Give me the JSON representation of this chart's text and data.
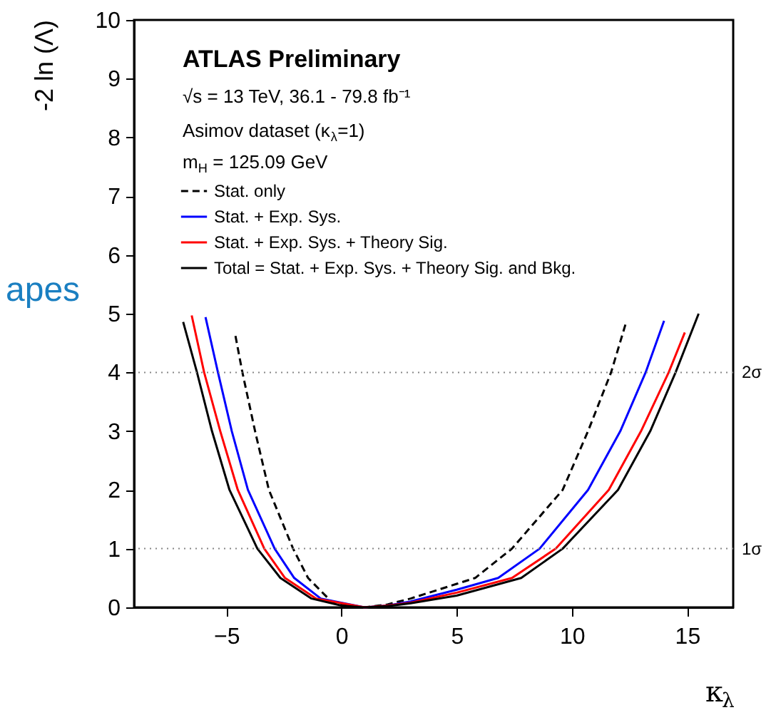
{
  "chart_data": {
    "type": "line",
    "xlabel": "κ$_{λ}$",
    "ylabel": "-2 ln (Λ)",
    "xlim": [
      -9,
      17
    ],
    "ylim": [
      0,
      10
    ],
    "xticks": [
      -5,
      0,
      5,
      10,
      15
    ],
    "yticks": [
      0,
      1,
      2,
      3,
      4,
      5,
      6,
      7,
      8,
      9,
      10
    ],
    "grid": false,
    "legend": "top left",
    "marker": "none",
    "annotations": [
      "ATLAS Preliminary",
      "√s = 13 TeV, 36.1 - 79.8 fb⁻¹",
      "Asimov dataset (κ$_{λ}$=1)",
      "m$_{H}$ = 125.09 GeV",
      "apes"
    ],
    "ref_lines": [
      {
        "axis": "y",
        "value": 1,
        "label": "1σ",
        "line_style": "dotted",
        "color": "#888888"
      },
      {
        "axis": "y",
        "value": 4,
        "label": "2σ",
        "line_style": "dotted",
        "color": "#888888"
      }
    ],
    "series": [
      {
        "name": "Stat. only",
        "color": "#000000",
        "line_style": "dashed",
        "x": [
          -4.6,
          -4.3,
          -3.75,
          -3.15,
          -2.1,
          -1.45,
          -0.44,
          0.3,
          1,
          2,
          3,
          5,
          5.8,
          7.4,
          9.6,
          10.7,
          11.7,
          12.35
        ],
        "values": [
          4.62,
          4,
          3,
          2,
          1,
          0.5,
          0.1,
          0.03,
          0,
          0.05,
          0.15,
          0.4,
          0.5,
          1,
          2,
          3,
          4,
          4.85
        ]
      },
      {
        "name": "Stat. + Exp. Sys.",
        "color": "#0000ff",
        "line_style": "solid",
        "x": [
          -5.9,
          -5.36,
          -4.76,
          -4.06,
          -2.9,
          -2.05,
          -0.9,
          1,
          2,
          3,
          5,
          6.8,
          8.6,
          10.7,
          12.1,
          13.2,
          14.0
        ],
        "values": [
          4.94,
          4,
          3,
          2,
          1,
          0.5,
          0.15,
          0,
          0.03,
          0.1,
          0.3,
          0.5,
          1,
          2,
          3,
          4,
          4.88
        ]
      },
      {
        "name": "Stat. + Exp. Sys. + Theory Sig.",
        "color": "#ff0000",
        "line_style": "solid",
        "x": [
          -6.5,
          -5.96,
          -5.26,
          -4.5,
          -3.35,
          -2.45,
          -1.1,
          1,
          2,
          3,
          5,
          7.4,
          9.3,
          11.6,
          13.0,
          14.2,
          14.9
        ],
        "values": [
          4.97,
          4,
          3,
          2,
          1,
          0.5,
          0.15,
          0,
          0.03,
          0.08,
          0.25,
          0.5,
          1,
          2,
          3,
          4,
          4.68
        ]
      },
      {
        "name": "Total = Stat. + Exp. Sys. + Theory Sig. and Bkg.",
        "color": "#000000",
        "line_style": "solid",
        "x": [
          -6.87,
          -6.27,
          -5.62,
          -4.86,
          -3.65,
          -2.65,
          -1.3,
          0,
          1,
          2,
          3,
          5,
          7.8,
          9.6,
          12.0,
          13.4,
          14.5,
          15.5
        ],
        "values": [
          4.86,
          4,
          3,
          2,
          1,
          0.5,
          0.15,
          0.03,
          0,
          0.02,
          0.07,
          0.2,
          0.5,
          1,
          2,
          3,
          4,
          5.0
        ]
      }
    ]
  }
}
